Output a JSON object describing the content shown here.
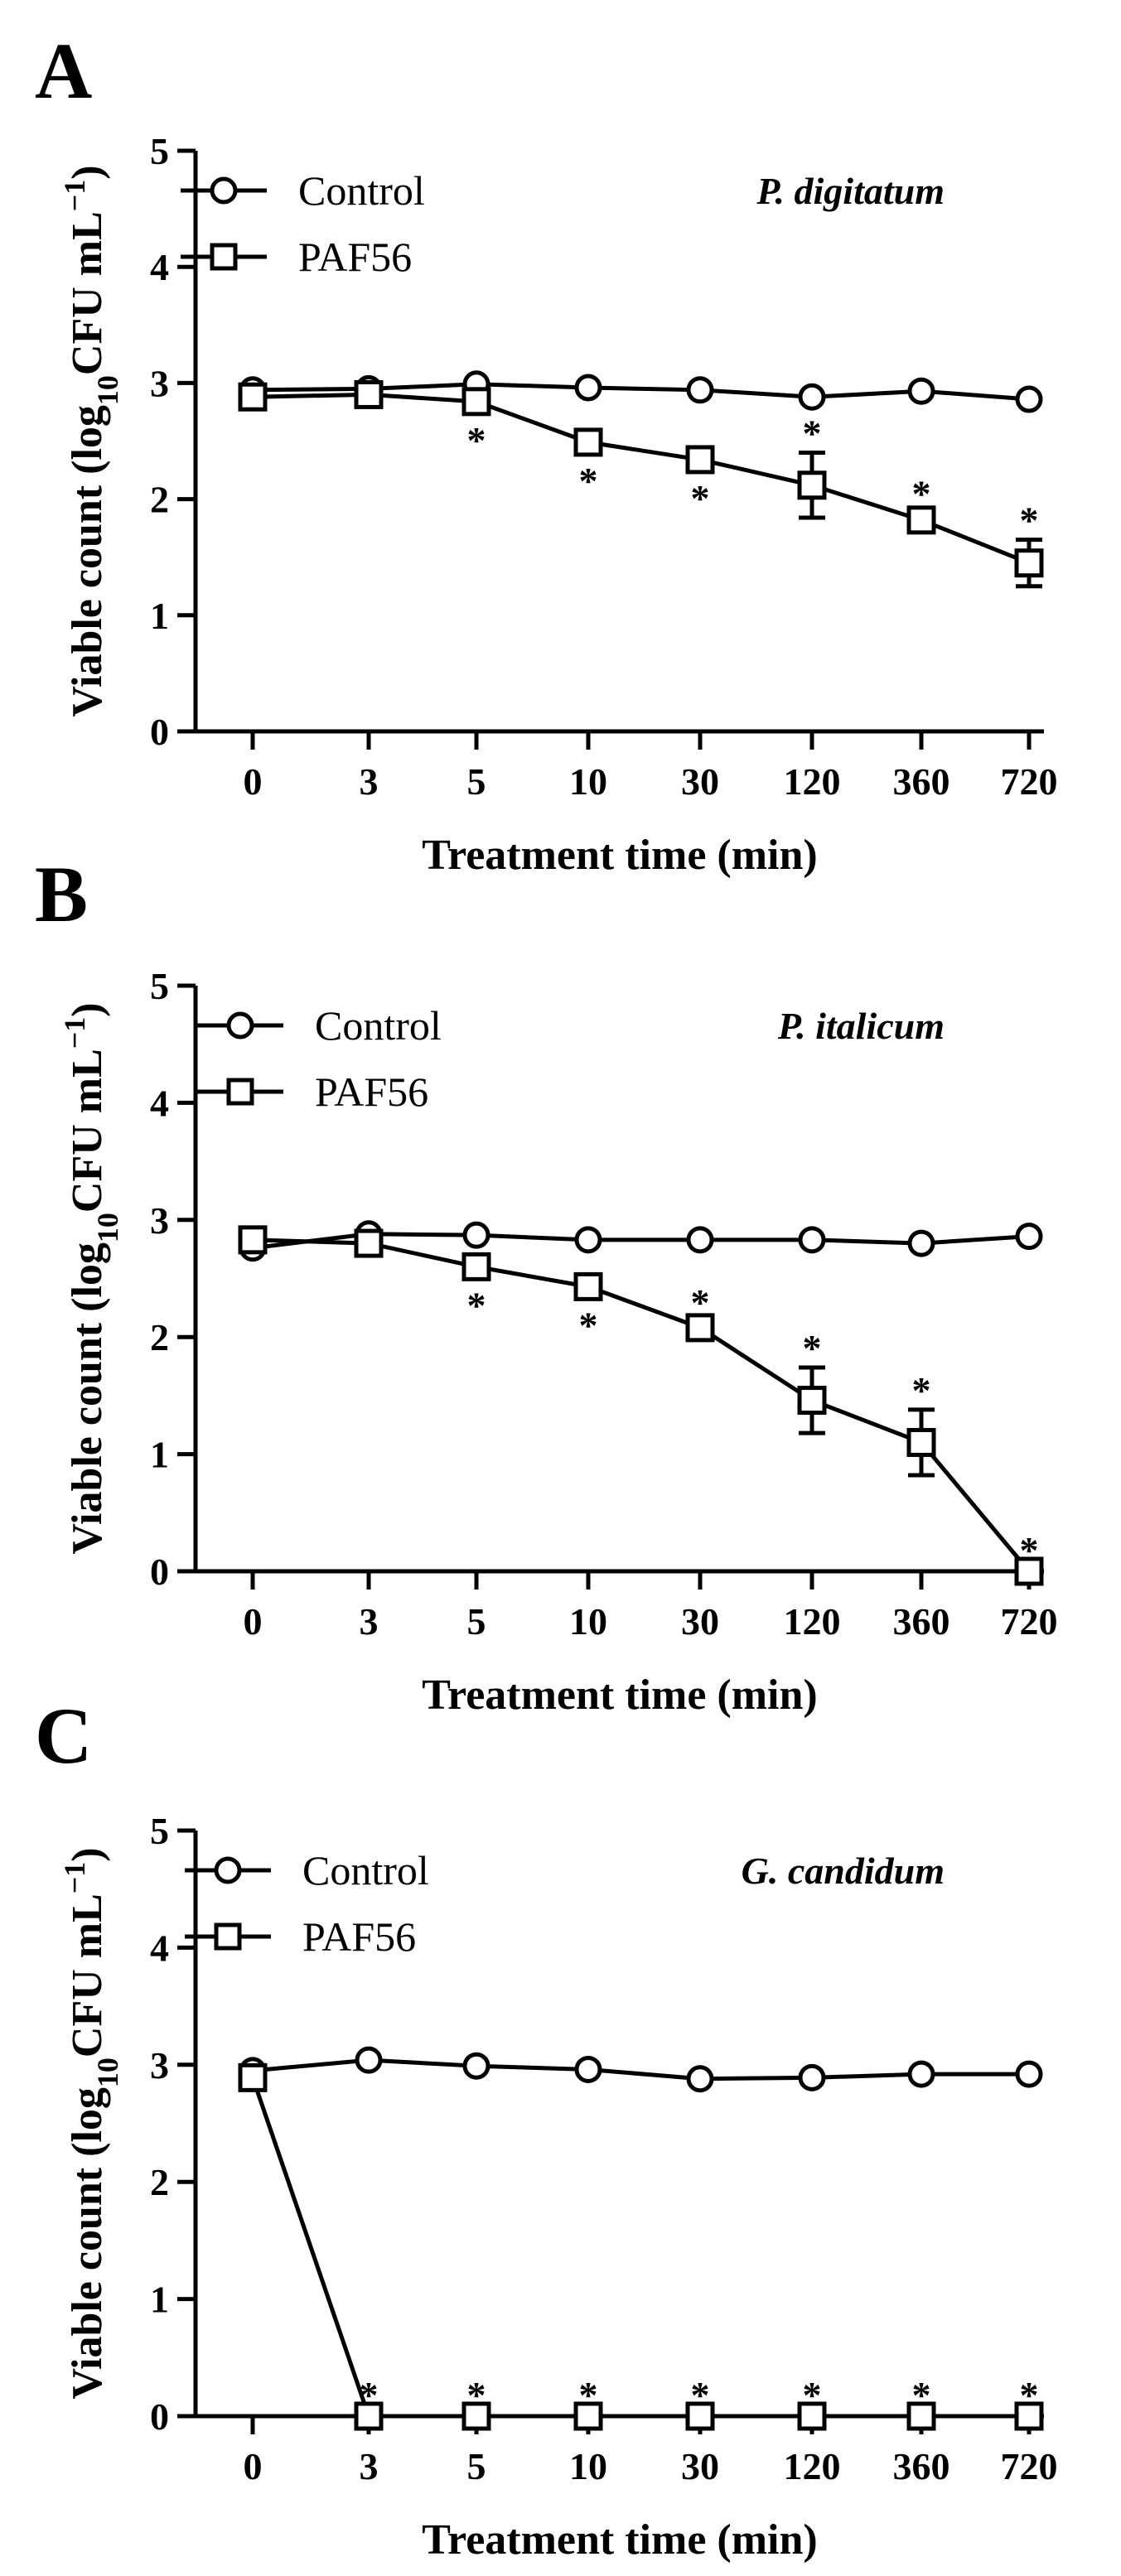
{
  "chart_data": [
    {
      "type": "line",
      "panel": "A",
      "annotation": "P. digitatum",
      "categories": [
        "0",
        "3",
        "5",
        "10",
        "30",
        "120",
        "360",
        "720"
      ],
      "xlabel": "Treatment time (min)",
      "ylabel": {
        "main": "Viable count (log",
        "sub": "10",
        "middle": "CFU mL",
        "sup": "−1",
        "end": ")"
      },
      "yticks": [
        "0",
        "1",
        "2",
        "3",
        "4",
        "5"
      ],
      "ylim": [
        0,
        5
      ],
      "legend": [
        "Control",
        "PAF56"
      ],
      "series": [
        {
          "name": "Control",
          "marker": "circle",
          "values": [
            2.94,
            2.95,
            2.99,
            2.96,
            2.94,
            2.88,
            2.93,
            2.86
          ]
        },
        {
          "name": "PAF56",
          "marker": "square",
          "values": [
            2.88,
            2.9,
            2.84,
            2.49,
            2.34,
            2.12,
            1.82,
            1.45
          ],
          "errors": [
            0,
            0,
            0,
            0.07,
            0.08,
            0.28,
            0.06,
            0.2
          ],
          "significant": [
            false,
            false,
            true,
            true,
            true,
            true,
            true,
            true
          ],
          "star_below": [
            false,
            false,
            true,
            true,
            true,
            false,
            false,
            false
          ]
        }
      ],
      "significance_marker": "*"
    },
    {
      "type": "line",
      "panel": "B",
      "annotation": "P. italicum",
      "categories": [
        "0",
        "3",
        "5",
        "10",
        "30",
        "120",
        "360",
        "720"
      ],
      "xlabel": "Treatment time (min)",
      "ylabel": {
        "main": "Viable count (log",
        "sub": "10",
        "middle": "CFU mL",
        "sup": "−1",
        "end": ")"
      },
      "yticks": [
        "0",
        "1",
        "2",
        "3",
        "4",
        "5"
      ],
      "ylim": [
        0,
        5
      ],
      "legend": [
        "Control",
        "PAF56"
      ],
      "series": [
        {
          "name": "Control",
          "marker": "circle",
          "values": [
            2.76,
            2.88,
            2.87,
            2.83,
            2.83,
            2.83,
            2.8,
            2.86
          ]
        },
        {
          "name": "PAF56",
          "marker": "square",
          "values": [
            2.83,
            2.8,
            2.6,
            2.43,
            2.08,
            1.46,
            1.1,
            0.0
          ],
          "errors": [
            0,
            0,
            0,
            0.05,
            0.05,
            0.28,
            0.28,
            0
          ],
          "significant": [
            false,
            false,
            true,
            true,
            true,
            true,
            true,
            true
          ],
          "star_below": [
            false,
            false,
            true,
            true,
            false,
            false,
            false,
            false
          ]
        }
      ],
      "significance_marker": "*"
    },
    {
      "type": "line",
      "panel": "C",
      "annotation": "G. candidum",
      "categories": [
        "0",
        "3",
        "5",
        "10",
        "30",
        "120",
        "360",
        "720"
      ],
      "xlabel": "Treatment time (min)",
      "ylabel": {
        "main": "Viable count (log",
        "sub": "10",
        "middle": "CFU mL",
        "sup": "−1",
        "end": ")"
      },
      "yticks": [
        "0",
        "1",
        "2",
        "3",
        "4",
        "5"
      ],
      "ylim": [
        0,
        5
      ],
      "legend": [
        "Control",
        "PAF56"
      ],
      "series": [
        {
          "name": "Control",
          "marker": "circle",
          "values": [
            2.95,
            3.04,
            2.99,
            2.96,
            2.88,
            2.89,
            2.92,
            2.92
          ]
        },
        {
          "name": "PAF56",
          "marker": "square",
          "values": [
            2.89,
            0,
            0,
            0,
            0,
            0,
            0,
            0
          ],
          "errors": [
            0,
            0,
            0,
            0,
            0,
            0,
            0,
            0
          ],
          "significant": [
            false,
            true,
            true,
            true,
            true,
            true,
            true,
            true
          ],
          "star_below": [
            false,
            false,
            false,
            false,
            false,
            false,
            false,
            false
          ]
        }
      ],
      "significance_marker": "*"
    }
  ]
}
